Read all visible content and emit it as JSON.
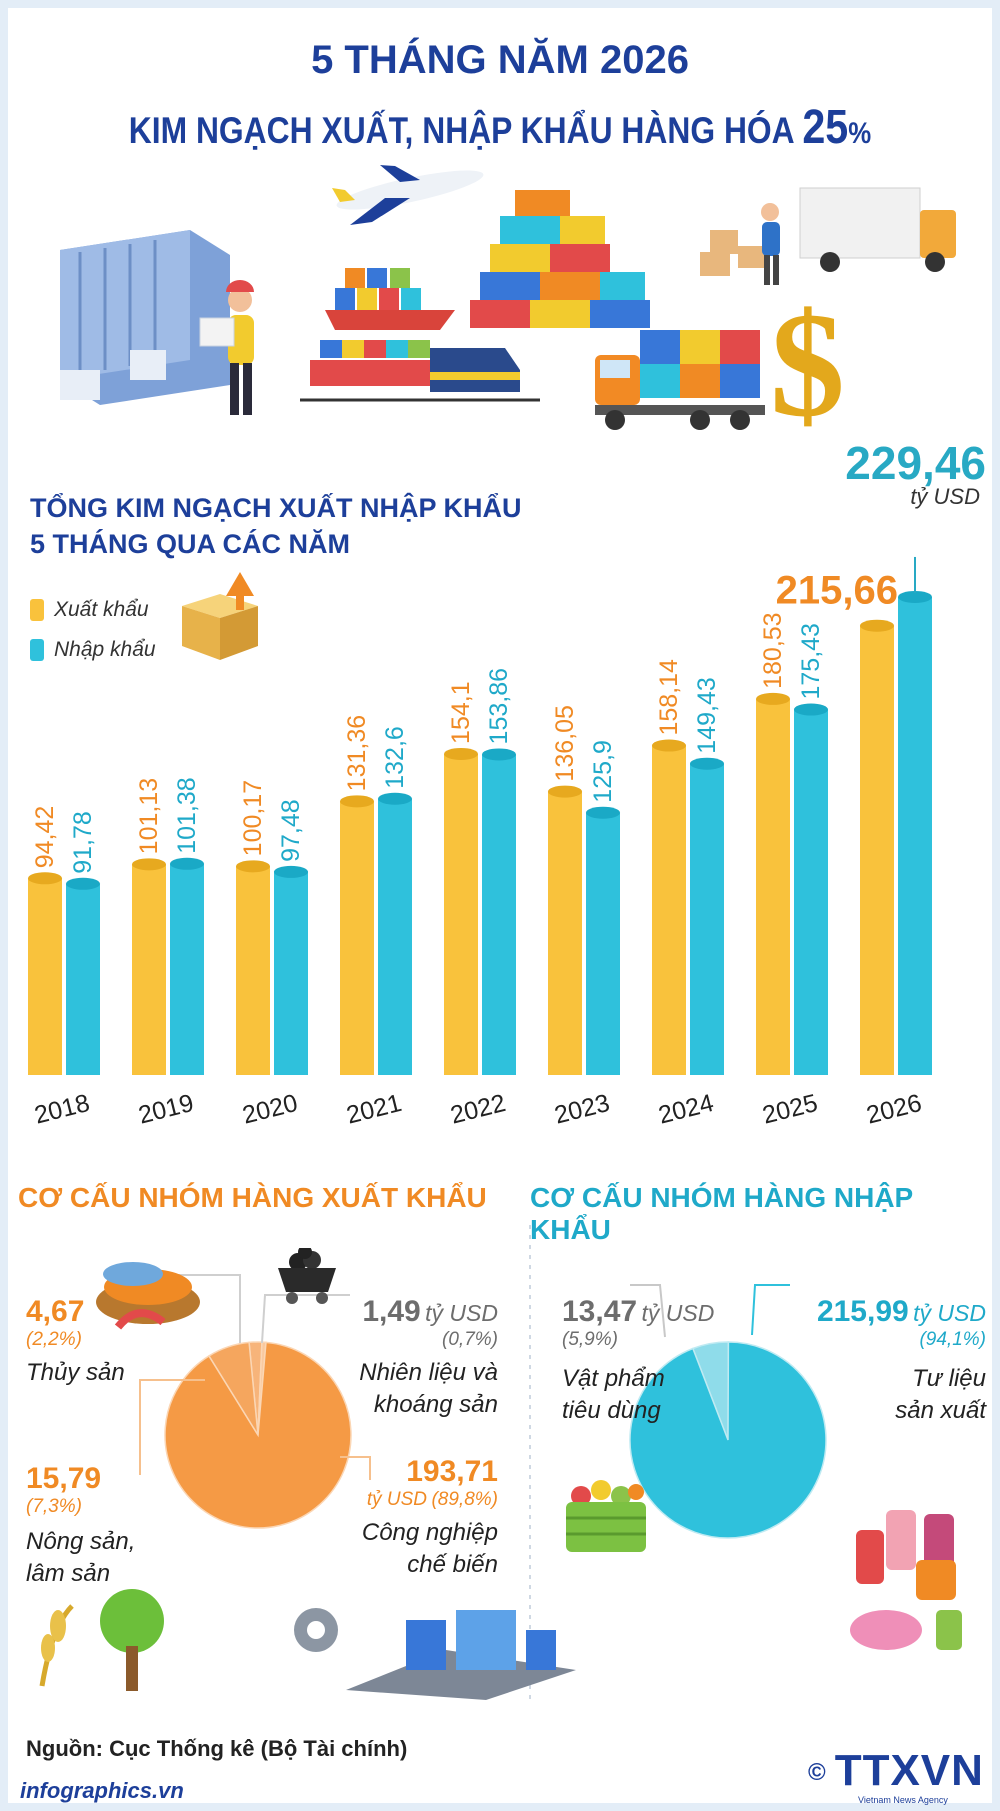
{
  "header": {
    "title_line1": "5 THÁNG NĂM 2026",
    "title_line2": "KIM NGẠCH XUẤT, NHẬP KHẨU HÀNG HÓA",
    "title_pct_num": "25",
    "title_pct_sign": "%"
  },
  "chart_title_line1": "TỔNG KIM NGẠCH XUẤT NHẬP KHẨU",
  "chart_title_line2": "5 THÁNG QUA CÁC NĂM",
  "legend": {
    "export": "Xuất khẩu",
    "import": "Nhập khẩu"
  },
  "unit": "tỷ USD",
  "colors": {
    "export": "#f9c23c",
    "import": "#2fc1dc",
    "export_title": "#f08a24",
    "import_title": "#1fa9c9",
    "navy": "#1d3f9a"
  },
  "chart_data": [
    {
      "type": "bar",
      "categories": [
        "2018",
        "2019",
        "2020",
        "2021",
        "2022",
        "2023",
        "2024",
        "2025",
        "2026"
      ],
      "series": [
        {
          "name": "Xuất khẩu",
          "values": [
            "94,42",
            "101,13",
            "100,17",
            "131,36",
            "154,1",
            "136,05",
            "158,14",
            "180,53",
            "215,66"
          ]
        },
        {
          "name": "Nhập khẩu",
          "values": [
            "91,78",
            "101,38",
            "97,48",
            "132,6",
            "153,86",
            "125,9",
            "149,43",
            "175,43",
            "229,46"
          ]
        }
      ],
      "ylim": [
        0,
        240
      ]
    },
    {
      "type": "pie",
      "title": "CƠ CẤU NHÓM HÀNG XUẤT KHẨU",
      "slices": [
        {
          "label": "Thủy sản",
          "value": "4,67",
          "percent": "(2,2%)",
          "share": 2.2
        },
        {
          "label": "Nhiên liệu và khoáng sản",
          "value": "1,49",
          "percent": "(0,7%)",
          "share": 0.7
        },
        {
          "label": "Công nghiệp chế biến",
          "value": "193,71",
          "percent": "(89,8%)",
          "share": 89.8
        },
        {
          "label": "Nông sản, lâm sản",
          "value": "15,79",
          "percent": "(7,3%)",
          "share": 7.3
        }
      ]
    },
    {
      "type": "pie",
      "title": "CƠ CẤU NHÓM HÀNG NHẬP KHẨU",
      "slices": [
        {
          "label": "Vật phẩm tiêu dùng",
          "value": "13,47",
          "percent": "(5,9%)",
          "share": 5.9
        },
        {
          "label": "Tư liệu sản xuất",
          "value": "215,99",
          "percent": "(94,1%)",
          "share": 94.1
        }
      ]
    }
  ],
  "export_slices_text": {
    "seafood": {
      "value": "4,67",
      "percent": "(2,2%)",
      "name": "Thủy sản"
    },
    "fuel": {
      "value": "1,49",
      "unit": "tỷ USD",
      "percent": "(0,7%)",
      "name1": "Nhiên liệu và",
      "name2": "khoáng sản"
    },
    "industry": {
      "value": "193,71",
      "unit": "tỷ USD",
      "percent": "(89,8%)",
      "name1": "Công nghiệp",
      "name2": "chế biến"
    },
    "agri": {
      "value": "15,79",
      "percent": "(7,3%)",
      "name1": "Nông sản,",
      "name2": "lâm sản"
    }
  },
  "import_slices_text": {
    "consumer": {
      "value": "13,47",
      "unit": "tỷ USD",
      "percent": "(5,9%)",
      "name1": "Vật phẩm",
      "name2": "tiêu dùng"
    },
    "production": {
      "value": "215,99",
      "unit": "tỷ USD",
      "percent": "(94,1%)",
      "name1": "Tư liệu",
      "name2": "sản xuất"
    }
  },
  "footer": {
    "source": "Nguồn: Cục Thống kê (Bộ Tài chính)",
    "site": "infographics.vn",
    "logo": "TTXVN",
    "logo_copyright": "©",
    "logo_sub": "Vietnam News Agency"
  }
}
